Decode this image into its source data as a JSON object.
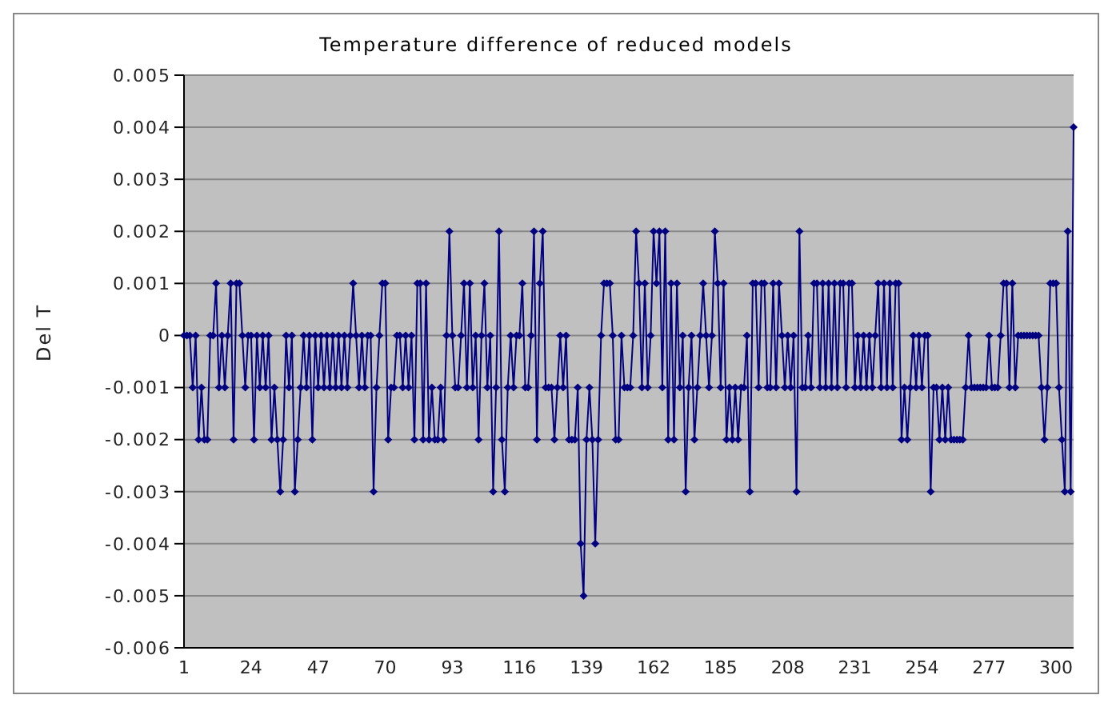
{
  "chart_data": {
    "type": "line",
    "title": "Temperature difference of reduced models",
    "ylabel": "Del T",
    "categories": [
      "1",
      null,
      null,
      null,
      null,
      null,
      null,
      null,
      null,
      null,
      null,
      null,
      null,
      null,
      null,
      null,
      null,
      null,
      null,
      null,
      null,
      null,
      null,
      "24",
      null,
      null,
      null,
      null,
      null,
      null,
      null,
      null,
      null,
      null,
      null,
      null,
      null,
      null,
      null,
      null,
      null,
      null,
      null,
      null,
      null,
      null,
      "47",
      null,
      null,
      null,
      null,
      null,
      null,
      null,
      null,
      null,
      null,
      null,
      null,
      null,
      null,
      null,
      null,
      null,
      null,
      null,
      null,
      null,
      null,
      "70",
      null,
      null,
      null,
      null,
      null,
      null,
      null,
      null,
      null,
      null,
      null,
      null,
      null,
      null,
      null,
      null,
      null,
      null,
      null,
      null,
      null,
      null,
      "93",
      null,
      null,
      null,
      null,
      null,
      null,
      null,
      null,
      null,
      null,
      null,
      null,
      null,
      null,
      null,
      null,
      null,
      null,
      null,
      null,
      null,
      null,
      "116",
      null,
      null,
      null,
      null,
      null,
      null,
      null,
      null,
      null,
      null,
      null,
      null,
      null,
      null,
      null,
      null,
      null,
      null,
      null,
      null,
      null,
      null,
      "139",
      null,
      null,
      null,
      null,
      null,
      null,
      null,
      null,
      null,
      null,
      null,
      null,
      null,
      null,
      null,
      null,
      null,
      null,
      null,
      null,
      null,
      null,
      "162",
      null,
      null,
      null,
      null,
      null,
      null,
      null,
      null,
      null,
      null,
      null,
      null,
      null,
      null,
      null,
      null,
      null,
      null,
      null,
      null,
      null,
      null,
      "185",
      null,
      null,
      null,
      null,
      null,
      null,
      null,
      null,
      null,
      null,
      null,
      null,
      null,
      null,
      null,
      null,
      null,
      null,
      null,
      null,
      null,
      null,
      "208",
      null,
      null,
      null,
      null,
      null,
      null,
      null,
      null,
      null,
      null,
      null,
      null,
      null,
      null,
      null,
      null,
      null,
      null,
      null,
      null,
      null,
      null,
      "231",
      null,
      null,
      null,
      null,
      null,
      null,
      null,
      null,
      null,
      null,
      null,
      null,
      null,
      null,
      null,
      null,
      null,
      null,
      null,
      null,
      null,
      null,
      "254",
      null,
      null,
      null,
      null,
      null,
      null,
      null,
      null,
      null,
      null,
      null,
      null,
      null,
      null,
      null,
      null,
      null,
      null,
      null,
      null,
      null,
      null,
      "277",
      null,
      null,
      null,
      null,
      null,
      null,
      null,
      null,
      null,
      null,
      null,
      null,
      null,
      null,
      null,
      null,
      null,
      null,
      null,
      null,
      null,
      null,
      "300",
      null,
      null,
      null,
      null,
      null,
      null
    ],
    "series": [
      {
        "color": "#000080",
        "values": [
          0,
          0,
          0,
          -0.001,
          0,
          -0.002,
          -0.001,
          -0.002,
          -0.002,
          0,
          0,
          0.001,
          -0.001,
          0,
          -0.001,
          0,
          0.001,
          -0.002,
          0.001,
          0.001,
          0,
          -0.001,
          0,
          0,
          -0.002,
          0,
          -0.001,
          0,
          -0.001,
          0,
          -0.002,
          -0.001,
          -0.002,
          -0.003,
          -0.002,
          0,
          -0.001,
          0,
          -0.003,
          -0.002,
          -0.001,
          0,
          -0.001,
          0,
          -0.002,
          0,
          -0.001,
          0,
          -0.001,
          0,
          -0.001,
          0,
          -0.001,
          0,
          -0.001,
          0,
          -0.001,
          0,
          0.001,
          0,
          -0.001,
          0,
          -0.001,
          0,
          0,
          -0.003,
          -0.001,
          0,
          0.001,
          0.001,
          -0.002,
          -0.001,
          -0.001,
          0,
          0,
          -0.001,
          0,
          -0.001,
          0,
          -0.002,
          0.001,
          0.001,
          -0.002,
          0.001,
          -0.002,
          -0.001,
          -0.002,
          -0.002,
          -0.001,
          -0.002,
          0,
          0.002,
          0,
          -0.001,
          -0.001,
          0,
          0.001,
          -0.001,
          0.001,
          -0.001,
          0,
          -0.002,
          0,
          0.001,
          -0.001,
          0,
          -0.003,
          -0.001,
          0.002,
          -0.002,
          -0.003,
          -0.001,
          0,
          -0.001,
          0,
          0,
          0.001,
          -0.001,
          -0.001,
          0,
          0.002,
          -0.002,
          0.001,
          0.002,
          -0.001,
          -0.001,
          -0.001,
          -0.002,
          -0.001,
          0,
          -0.001,
          0,
          -0.002,
          -0.002,
          -0.002,
          -0.001,
          -0.004,
          -0.005,
          -0.002,
          -0.001,
          -0.002,
          -0.004,
          -0.002,
          0,
          0.001,
          0.001,
          0.001,
          0,
          -0.002,
          -0.002,
          0,
          -0.001,
          -0.001,
          -0.001,
          0,
          0.002,
          0.001,
          -0.001,
          0.001,
          -0.001,
          0,
          0.002,
          0.001,
          0.002,
          -0.001,
          0.002,
          -0.002,
          0.001,
          -0.002,
          0.001,
          -0.001,
          0,
          -0.003,
          -0.001,
          0,
          -0.002,
          -0.001,
          0,
          0.001,
          0,
          -0.001,
          0,
          0.002,
          0.001,
          -0.001,
          0.001,
          -0.002,
          -0.001,
          -0.002,
          -0.001,
          -0.002,
          -0.001,
          -0.001,
          0,
          -0.003,
          0.001,
          0.001,
          -0.001,
          0.001,
          0.001,
          -0.001,
          -0.001,
          0.001,
          -0.001,
          0.001,
          0,
          -0.001,
          0,
          -0.001,
          0,
          -0.003,
          0.002,
          -0.001,
          -0.001,
          0,
          -0.001,
          0.001,
          0.001,
          -0.001,
          0.001,
          -0.001,
          0.001,
          -0.001,
          0.001,
          -0.001,
          0.001,
          0.001,
          -0.001,
          0.001,
          0.001,
          -0.001,
          0,
          -0.001,
          0,
          -0.001,
          0,
          -0.001,
          0,
          0.001,
          -0.001,
          0.001,
          -0.001,
          0.001,
          -0.001,
          0.001,
          0.001,
          -0.002,
          -0.001,
          -0.002,
          -0.001,
          0,
          -0.001,
          0,
          -0.001,
          0,
          0,
          -0.003,
          -0.001,
          -0.001,
          -0.002,
          -0.001,
          -0.002,
          -0.001,
          -0.002,
          -0.002,
          -0.002,
          -0.002,
          -0.002,
          -0.001,
          0,
          -0.001,
          -0.001,
          -0.001,
          -0.001,
          -0.001,
          -0.001,
          0,
          -0.001,
          -0.001,
          -0.001,
          0,
          0.001,
          0.001,
          -0.001,
          0.001,
          -0.001,
          0,
          0,
          0,
          0,
          0,
          0,
          0,
          0,
          -0.001,
          -0.002,
          -0.001,
          0.001,
          0.001,
          0.001,
          -0.001,
          -0.002,
          -0.003,
          0.002,
          -0.003,
          0.004
        ]
      }
    ],
    "ylim": [
      -0.006,
      0.005
    ],
    "yticks": [
      -0.006,
      -0.005,
      -0.004,
      -0.003,
      -0.002,
      -0.001,
      0,
      0.001,
      0.002,
      0.003,
      0.004,
      0.005
    ],
    "grid": "y",
    "marker": "diamond",
    "line_style": "solid",
    "legend": false
  }
}
